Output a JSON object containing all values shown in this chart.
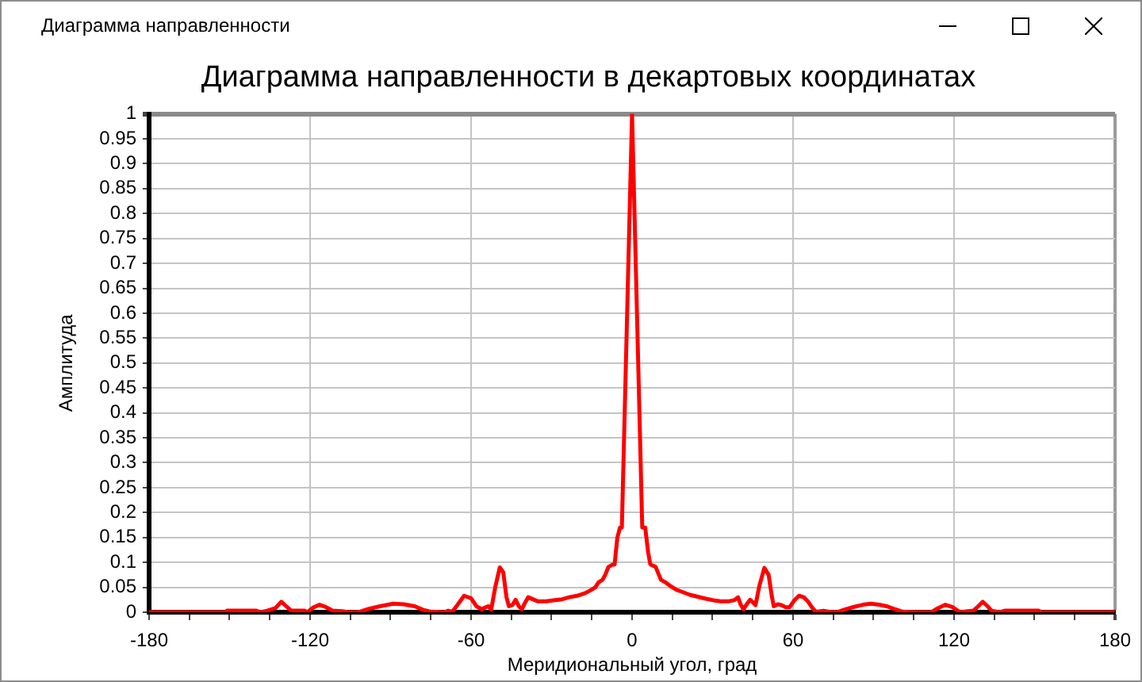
{
  "chart_data": {
    "type": "line",
    "title": "Диаграмма направленности в декартовых координатах",
    "xlabel": "Меридиональный угол, град",
    "ylabel": "Амплитуда",
    "annotations": [
      "Диаграмма направленности"
    ],
    "x": [
      -180,
      -151.5,
      -151,
      -140,
      -138.5,
      -136,
      -133,
      -130.7,
      -128.5,
      -127,
      -122,
      -121,
      -119,
      -116.5,
      -114,
      -111.5,
      -108,
      -105.5,
      -102,
      -98,
      -94,
      -89,
      -85,
      -81,
      -78,
      -75,
      -70,
      -68.5,
      -67,
      -65,
      -62.6,
      -60,
      -58,
      -56,
      -55,
      -53.5,
      -52.5,
      -51,
      -49.3,
      -48,
      -46.8,
      -45.9,
      -44.5,
      -43.4,
      -42.2,
      -41.1,
      -39.8,
      -38.7,
      -37,
      -35.2,
      -32,
      -29.3,
      -26,
      -23.5,
      -20.5,
      -17.6,
      -15.5,
      -13.7,
      -12.5,
      -11,
      -10,
      -8.8,
      -7.5,
      -6.5,
      -5.5,
      -4.5,
      -3.8,
      0,
      3.8,
      4.9,
      6,
      6.8,
      8.8,
      10,
      10.8,
      12.7,
      14.7,
      16.5,
      18.6,
      21.5,
      24.5,
      27.5,
      30.3,
      33,
      36.2,
      38,
      39.5,
      40.5,
      41.5,
      43,
      44,
      45,
      46,
      47.5,
      49.3,
      50.9,
      52,
      52.8,
      54.3,
      55.8,
      57.3,
      58.7,
      60.5,
      62.2,
      64,
      65.5,
      67,
      68.5,
      71.4,
      73.5,
      76.3,
      79,
      82.2,
      86,
      89,
      92,
      94.9,
      98,
      100.8,
      106,
      111.5,
      114,
      116.8,
      119.5,
      122.3,
      125,
      127.2,
      129,
      130.7,
      132.5,
      134,
      137,
      138.9,
      151.6,
      152.5,
      180
    ],
    "series": [
      {
        "color": "#ff0000",
        "values": [
          0,
          0,
          0.003,
          0.003,
          0,
          0.003,
          0.008,
          0.021,
          0.01,
          0.003,
          0.003,
          0,
          0.009,
          0.015,
          0.01,
          0.003,
          0.002,
          0,
          0,
          0.007,
          0.012,
          0.017,
          0.016,
          0.012,
          0.005,
          0.001,
          0,
          0.003,
          0.001,
          0.015,
          0.033,
          0.028,
          0.012,
          0.006,
          0.009,
          0.012,
          0.005,
          0.05,
          0.09,
          0.08,
          0.03,
          0.012,
          0.015,
          0.025,
          0.012,
          0.006,
          0.02,
          0.03,
          0.026,
          0.022,
          0.022,
          0.024,
          0.026,
          0.03,
          0.033,
          0.038,
          0.044,
          0.05,
          0.06,
          0.065,
          0.075,
          0.091,
          0.095,
          0.096,
          0.149,
          0.17,
          0.17,
          1,
          0.17,
          0.17,
          0.12,
          0.096,
          0.091,
          0.075,
          0.065,
          0.059,
          0.051,
          0.045,
          0.041,
          0.035,
          0.031,
          0.027,
          0.024,
          0.022,
          0.022,
          0.024,
          0.03,
          0.015,
          0.006,
          0.018,
          0.025,
          0.02,
          0.014,
          0.054,
          0.089,
          0.075,
          0.035,
          0.012,
          0.016,
          0.014,
          0.01,
          0.01,
          0.024,
          0.033,
          0.03,
          0.022,
          0.01,
          0.001,
          0.003,
          0.001,
          0,
          0.005,
          0.01,
          0.015,
          0.017,
          0.015,
          0.012,
          0.006,
          0.001,
          0,
          0,
          0.008,
          0.015,
          0.01,
          0,
          0.002,
          0.003,
          0.012,
          0.021,
          0.012,
          0.003,
          0,
          0.003,
          0.003,
          0,
          0
        ]
      }
    ],
    "xlim": [
      -180,
      180
    ],
    "xticks": [
      -180,
      {
        "value": -165,
        "label": null
      },
      {
        "value": -150,
        "label": null
      },
      {
        "value": -135,
        "label": null
      },
      -120,
      {
        "value": -105,
        "label": null
      },
      {
        "value": -90,
        "label": null
      },
      {
        "value": -75,
        "label": null
      },
      -60,
      {
        "value": -45,
        "label": null
      },
      {
        "value": -30,
        "label": null
      },
      {
        "value": -15,
        "label": null
      },
      0,
      {
        "value": 15,
        "label": null
      },
      {
        "value": 30,
        "label": null
      },
      {
        "value": 45,
        "label": null
      },
      60,
      {
        "value": 75,
        "label": null
      },
      {
        "value": 90,
        "label": null
      },
      {
        "value": 105,
        "label": null
      },
      120,
      {
        "value": 135,
        "label": null
      },
      {
        "value": 150,
        "label": null
      },
      {
        "value": 165,
        "label": null
      },
      180
    ],
    "ylim": [
      0,
      1
    ],
    "yticks": [
      0,
      0.05,
      0.1,
      0.15,
      0.2,
      0.25,
      0.3,
      0.35,
      0.4,
      0.45,
      0.5,
      0.55,
      0.6,
      0.65,
      0.7,
      0.75,
      0.8,
      0.85,
      0.9,
      0.95,
      1
    ],
    "grid": true,
    "marker": "none",
    "line_style": "solid"
  }
}
